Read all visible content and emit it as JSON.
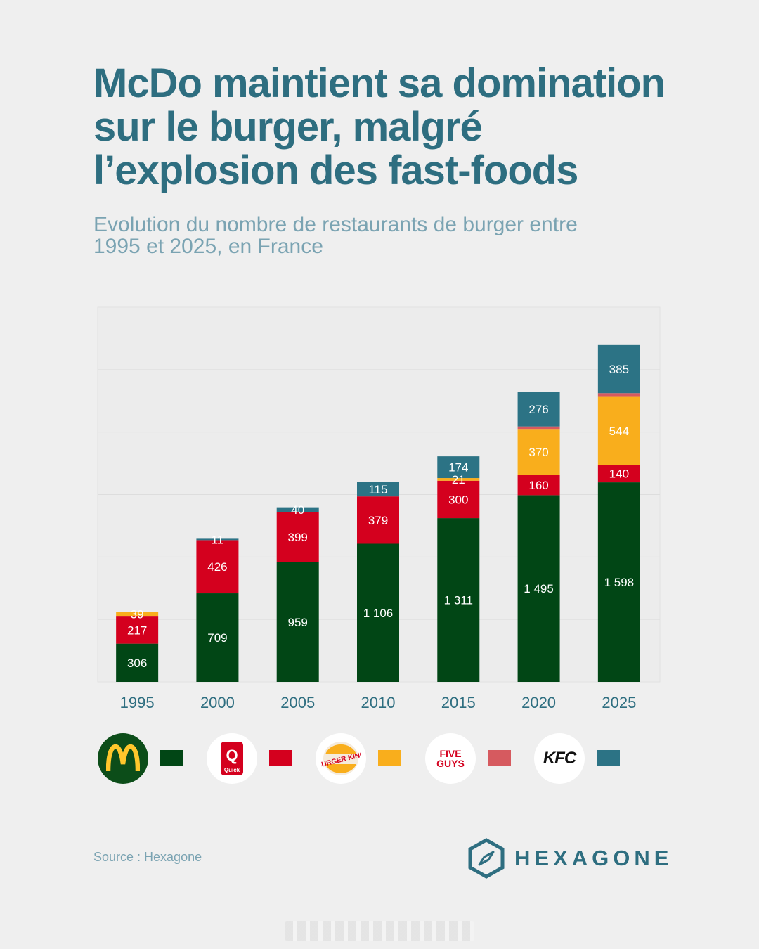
{
  "title": {
    "line1": "McDo maintient sa domination",
    "line2": "sur le burger, malgré",
    "line3": "l’explosion des fast-foods"
  },
  "subtitle": {
    "line1": "Evolution du nombre de restaurants de burger entre",
    "line2": "1995 et 2025, en France"
  },
  "source": "Source : Hexagone",
  "brand": {
    "name": "HEXAGONE"
  },
  "colors": {
    "background": "#efefef",
    "title": "#2e6e80",
    "subtitle": "#7aa3b2",
    "mcdo": "#014615",
    "quick": "#d4001e",
    "burger_king": "#f9ae1c",
    "five_guys": "#d65a5f",
    "kfc": "#2c7385"
  },
  "legend": [
    {
      "name": "McDonald's",
      "icon": "mcdonalds-logo-icon",
      "color": "#014615"
    },
    {
      "name": "Quick",
      "icon": "quick-logo-icon",
      "color": "#d4001e",
      "logo_text": "Quick"
    },
    {
      "name": "Burger King",
      "icon": "burger-king-logo-icon",
      "color": "#f9ae1c",
      "logo_text": "BURGER KING"
    },
    {
      "name": "Five Guys",
      "icon": "five-guys-logo-icon",
      "color": "#d65a5f",
      "logo_text": "FIVE GUYS"
    },
    {
      "name": "KFC",
      "icon": "kfc-logo-icon",
      "color": "#2c7385",
      "logo_text": "KFC"
    }
  ],
  "chart_data": {
    "type": "bar",
    "stacked": true,
    "categories": [
      "1995",
      "2000",
      "2005",
      "2010",
      "2015",
      "2020",
      "2025"
    ],
    "series": [
      {
        "name": "McDonald's",
        "color": "#014615",
        "values": [
          306,
          709,
          959,
          1106,
          1311,
          1495,
          1598
        ],
        "labels": [
          "306",
          "709",
          "959",
          "1 106",
          "1 311",
          "1 495",
          "1 598"
        ]
      },
      {
        "name": "Quick",
        "color": "#d4001e",
        "values": [
          217,
          426,
          399,
          379,
          300,
          160,
          140
        ],
        "labels": [
          "217",
          "426",
          "399",
          "379",
          "300",
          "160",
          "140"
        ]
      },
      {
        "name": "Burger King",
        "color": "#f9ae1c",
        "values": [
          39,
          0,
          0,
          0,
          21,
          370,
          544
        ],
        "labels": [
          "39",
          "",
          "",
          "",
          "21",
          "370",
          "544"
        ]
      },
      {
        "name": "Five Guys",
        "color": "#d65a5f",
        "values": [
          0,
          0,
          0,
          0,
          0,
          20,
          30
        ],
        "labels": [
          "",
          "",
          "",
          "",
          "",
          "",
          ""
        ]
      },
      {
        "name": "KFC",
        "color": "#2c7385",
        "values": [
          0,
          11,
          40,
          115,
          174,
          276,
          385
        ],
        "labels": [
          "",
          "11",
          "40",
          "115",
          "174",
          "276",
          "385"
        ]
      }
    ],
    "ylim": [
      0,
      3000
    ],
    "grid": true,
    "legend_position": "bottom"
  }
}
